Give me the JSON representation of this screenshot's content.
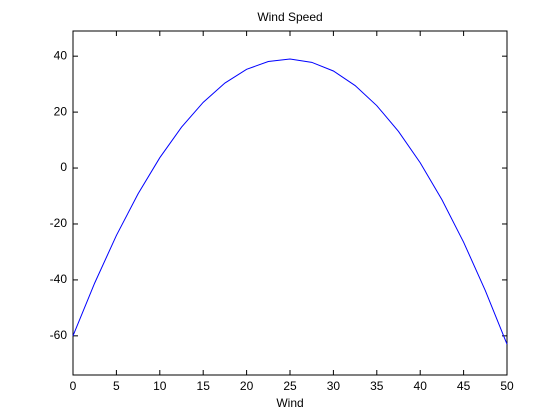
{
  "chart_data": {
    "type": "line",
    "title": "Wind Speed",
    "x_label": "Wind",
    "x": [
      0,
      2.5,
      5,
      7.5,
      10,
      12.5,
      15,
      17.5,
      20,
      22.5,
      25,
      27.5,
      30,
      32.5,
      35,
      37.5,
      40,
      42.5,
      45,
      47.5,
      50
    ],
    "series": [
      {
        "color": "#0000ff",
        "values": [
          -60,
          -41.1,
          -24.1,
          -9.2,
          3.7,
          14.6,
          23.5,
          30.4,
          35.3,
          38.1,
          39.0,
          37.8,
          34.7,
          29.5,
          22.3,
          13.1,
          1.9,
          -11.3,
          -26.5,
          -43.8,
          -63
        ]
      }
    ],
    "xlim": [
      0,
      50
    ],
    "xticks": [
      0,
      5,
      10,
      15,
      20,
      25,
      30,
      35,
      40,
      45,
      50
    ],
    "ylim": [
      -74,
      49
    ],
    "yticks": [
      -60,
      -40,
      -20,
      0,
      20,
      40
    ],
    "grid": false
  }
}
